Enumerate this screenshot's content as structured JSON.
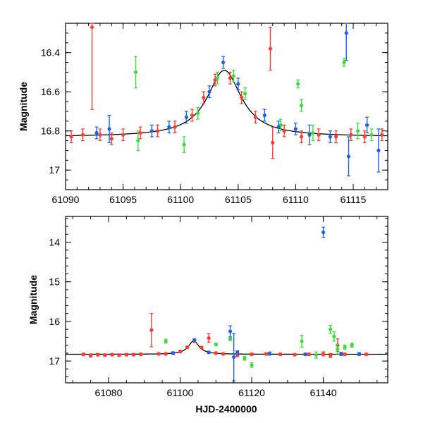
{
  "chart_data": [
    {
      "type": "scatter",
      "panel": "top",
      "title": "",
      "xlabel": "",
      "ylabel": "Magnitude",
      "xlim": [
        61090,
        61118
      ],
      "ylim": [
        16.25,
        17.1
      ],
      "y_inverted": true,
      "xticks": [
        61090,
        61095,
        61100,
        61105,
        61110,
        61115
      ],
      "xtick_labels": [
        "61090",
        "61095",
        "61100",
        "61105",
        "61110",
        "61115"
      ],
      "yticks": [
        16.4,
        16.6,
        16.8,
        17.0
      ],
      "ytick_labels": [
        "16.4",
        "16.6",
        "16.8",
        "17"
      ],
      "model_curve": {
        "name": "model",
        "color": "#000000",
        "baseline": 16.83,
        "peak_x": 61103.8,
        "peak_y": 16.49,
        "width": 1.8
      },
      "series": [
        {
          "name": "red",
          "color": "#ff3b2f",
          "points": [
            [
              61090.5,
              16.83,
              0.03
            ],
            [
              61091.5,
              16.82,
              0.03
            ],
            [
              61092.3,
              16.27,
              0.42
            ],
            [
              61093.0,
              16.82,
              0.03
            ],
            [
              61094.0,
              16.84,
              0.03
            ],
            [
              61095.0,
              16.82,
              0.03
            ],
            [
              61096.5,
              16.81,
              0.03
            ],
            [
              61098.0,
              16.8,
              0.03
            ],
            [
              61099.5,
              16.78,
              0.03
            ],
            [
              61101.0,
              16.72,
              0.03
            ],
            [
              61102.0,
              16.63,
              0.03
            ],
            [
              61103.0,
              16.54,
              0.03
            ],
            [
              61104.3,
              16.53,
              0.03
            ],
            [
              61105.3,
              16.63,
              0.03
            ],
            [
              61106.5,
              16.73,
              0.03
            ],
            [
              61107.8,
              16.38,
              0.11
            ],
            [
              61108.0,
              16.86,
              0.08
            ],
            [
              61109.0,
              16.8,
              0.03
            ],
            [
              61110.5,
              16.83,
              0.03
            ],
            [
              61112.0,
              16.82,
              0.03
            ],
            [
              61113.5,
              16.83,
              0.03
            ],
            [
              61114.8,
              16.82,
              0.03
            ],
            [
              61116.0,
              16.83,
              0.03
            ],
            [
              61117.5,
              16.82,
              0.03
            ]
          ]
        },
        {
          "name": "green",
          "color": "#3ddc3d",
          "points": [
            [
              61096.1,
              16.5,
              0.08
            ],
            [
              61096.3,
              16.85,
              0.05
            ],
            [
              61100.3,
              16.87,
              0.04
            ],
            [
              61101.5,
              16.71,
              0.03
            ],
            [
              61103.2,
              16.53,
              0.03
            ],
            [
              61104.6,
              16.52,
              0.03
            ],
            [
              61105.6,
              16.61,
              0.03
            ],
            [
              61108.7,
              16.77,
              0.03
            ],
            [
              61110.2,
              16.56,
              0.02
            ],
            [
              61110.5,
              16.67,
              0.03
            ],
            [
              61111.5,
              16.81,
              0.04
            ],
            [
              61114.2,
              16.45,
              0.02
            ],
            [
              61115.4,
              16.8,
              0.04
            ],
            [
              61116.6,
              16.82,
              0.03
            ]
          ]
        },
        {
          "name": "blue",
          "color": "#1f5fe8",
          "points": [
            [
              61092.7,
              16.81,
              0.03
            ],
            [
              61093.8,
              16.79,
              0.07
            ],
            [
              61097.5,
              16.8,
              0.03
            ],
            [
              61099.0,
              16.78,
              0.03
            ],
            [
              61100.5,
              16.73,
              0.03
            ],
            [
              61102.5,
              16.6,
              0.03
            ],
            [
              61103.7,
              16.45,
              0.03
            ],
            [
              61105.0,
              16.56,
              0.03
            ],
            [
              61107.3,
              16.72,
              0.03
            ],
            [
              61108.5,
              16.78,
              0.03
            ],
            [
              61110.0,
              16.79,
              0.03
            ],
            [
              61111.2,
              16.82,
              0.05
            ],
            [
              61113.0,
              16.83,
              0.03
            ],
            [
              61114.4,
              16.3,
              0.14
            ],
            [
              61114.6,
              16.93,
              0.1
            ],
            [
              61116.2,
              16.77,
              0.04
            ],
            [
              61117.2,
              16.9,
              0.11
            ]
          ]
        }
      ]
    },
    {
      "type": "scatter",
      "panel": "bottom",
      "title": "",
      "xlabel": "HJD-2400000",
      "ylabel": "Magnitude",
      "xlim": [
        61068,
        61158
      ],
      "ylim": [
        13.35,
        17.55
      ],
      "y_inverted": true,
      "xticks": [
        61080,
        61100,
        61120,
        61140
      ],
      "xtick_labels": [
        "61080",
        "61100",
        "61120",
        "61140"
      ],
      "yticks": [
        14,
        15,
        16,
        17
      ],
      "ytick_labels": [
        "14",
        "15",
        "16",
        "17"
      ],
      "model_curve": {
        "name": "model",
        "color": "#000000",
        "baseline": 16.83,
        "peak_x": 61103.8,
        "peak_y": 16.49,
        "width": 1.8
      },
      "series": [
        {
          "name": "red",
          "color": "#ff3b2f",
          "points": [
            [
              61073,
              16.83,
              0.03
            ],
            [
              61075,
              16.86,
              0.04
            ],
            [
              61077,
              16.84,
              0.03
            ],
            [
              61079,
              16.85,
              0.03
            ],
            [
              61081,
              16.84,
              0.03
            ],
            [
              61083,
              16.85,
              0.03
            ],
            [
              61085,
              16.84,
              0.03
            ],
            [
              61087,
              16.84,
              0.03
            ],
            [
              61089,
              16.83,
              0.03
            ],
            [
              61092,
              16.22,
              0.42
            ],
            [
              61094,
              16.82,
              0.03
            ],
            [
              61096,
              16.82,
              0.03
            ],
            [
              61098,
              16.8,
              0.03
            ],
            [
              61100,
              16.76,
              0.03
            ],
            [
              61102,
              16.65,
              0.03
            ],
            [
              61104,
              16.5,
              0.03
            ],
            [
              61106,
              16.66,
              0.03
            ],
            [
              61108,
              16.42,
              0.11
            ],
            [
              61110,
              16.8,
              0.03
            ],
            [
              61112,
              16.82,
              0.03
            ],
            [
              61116,
              16.85,
              0.04
            ],
            [
              61120,
              16.83,
              0.03
            ],
            [
              61124,
              16.82,
              0.03
            ],
            [
              61128,
              16.83,
              0.03
            ],
            [
              61132,
              16.84,
              0.03
            ],
            [
              61136,
              16.83,
              0.03
            ],
            [
              61140,
              16.82,
              0.05
            ],
            [
              61142,
              16.86,
              0.05
            ],
            [
              61144,
              16.6,
              0.16
            ],
            [
              61146,
              16.83,
              0.03
            ],
            [
              61150,
              16.83,
              0.03
            ],
            [
              61152,
              16.83,
              0.03
            ]
          ]
        },
        {
          "name": "green",
          "color": "#3ddc3d",
          "points": [
            [
              61096,
              16.5,
              0.05
            ],
            [
              61110,
              16.58,
              0.03
            ],
            [
              61114,
              16.45,
              0.03
            ],
            [
              61118,
              16.93,
              0.05
            ],
            [
              61120,
              17.1,
              0.06
            ],
            [
              61125,
              16.8,
              0.03
            ],
            [
              61134,
              16.5,
              0.15
            ],
            [
              61138,
              16.85,
              0.08
            ],
            [
              61142,
              16.2,
              0.1
            ],
            [
              61143,
              16.38,
              0.12
            ],
            [
              61144,
              16.7,
              0.12
            ],
            [
              61146,
              16.65,
              0.05
            ],
            [
              61148,
              16.6,
              0.05
            ]
          ]
        },
        {
          "name": "blue",
          "color": "#1f5fe8",
          "points": [
            [
              61098,
              16.8,
              0.03
            ],
            [
              61104,
              16.47,
              0.03
            ],
            [
              61108,
              16.78,
              0.03
            ],
            [
              61114,
              16.25,
              0.14
            ],
            [
              61115,
              16.9,
              0.6
            ],
            [
              61116,
              16.78,
              0.04
            ],
            [
              61125,
              16.82,
              0.03
            ],
            [
              61135,
              16.83,
              0.03
            ],
            [
              61140,
              13.75,
              0.13
            ],
            [
              61145,
              16.82,
              0.04
            ],
            [
              61150,
              16.82,
              0.03
            ]
          ]
        }
      ]
    }
  ]
}
